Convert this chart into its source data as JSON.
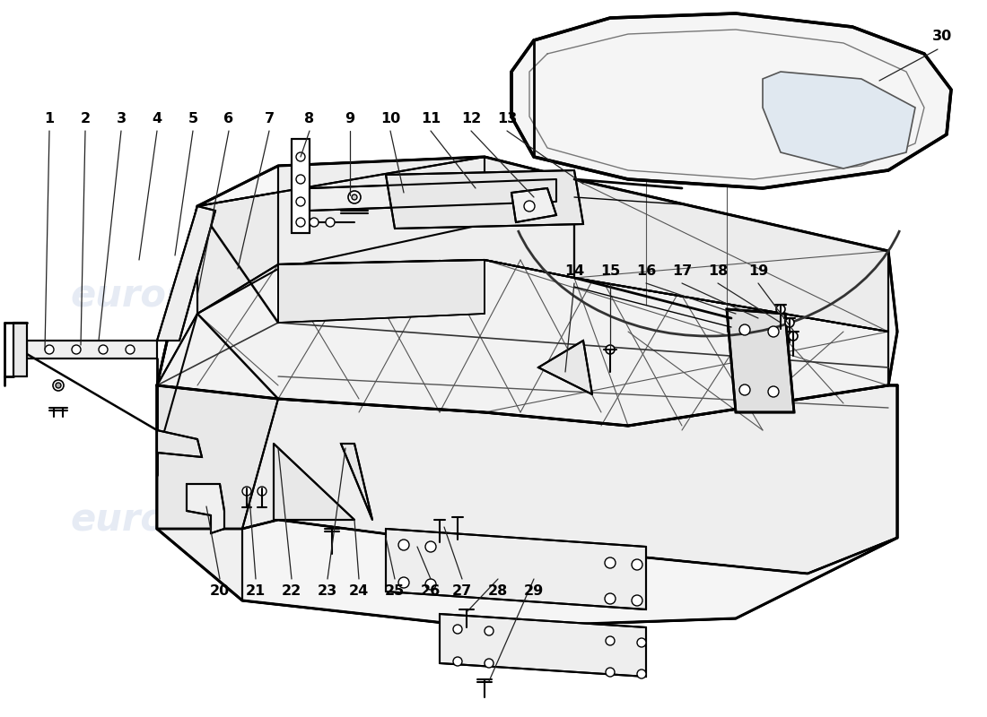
{
  "bg_color": "#ffffff",
  "line_color": "#000000",
  "wm_color": "#c8d4e8",
  "wm_alpha": 0.45,
  "wm_text": "eurospares",
  "figwidth": 11.0,
  "figheight": 8.0,
  "top_labels": [
    [
      "1",
      55,
      125
    ],
    [
      "2",
      95,
      125
    ],
    [
      "3",
      135,
      125
    ],
    [
      "4",
      175,
      125
    ],
    [
      "5",
      215,
      125
    ],
    [
      "6",
      255,
      125
    ],
    [
      "7",
      300,
      125
    ],
    [
      "8",
      345,
      125
    ],
    [
      "9",
      390,
      125
    ],
    [
      "10",
      435,
      125
    ],
    [
      "11",
      480,
      125
    ],
    [
      "12",
      520,
      125
    ],
    [
      "13",
      560,
      125
    ]
  ],
  "mid_labels": [
    [
      "14",
      640,
      310
    ],
    [
      "15",
      680,
      310
    ],
    [
      "16",
      720,
      310
    ],
    [
      "17",
      760,
      310
    ],
    [
      "18",
      800,
      310
    ],
    [
      "19",
      840,
      310
    ]
  ],
  "bot_labels": [
    [
      "20",
      245,
      640
    ],
    [
      "21",
      285,
      640
    ],
    [
      "22",
      325,
      640
    ],
    [
      "23",
      365,
      640
    ],
    [
      "24",
      400,
      640
    ],
    [
      "25",
      440,
      640
    ],
    [
      "26",
      480,
      640
    ],
    [
      "27",
      515,
      640
    ],
    [
      "28",
      555,
      640
    ],
    [
      "29",
      595,
      640
    ]
  ],
  "label30": [
    1050,
    55
  ]
}
